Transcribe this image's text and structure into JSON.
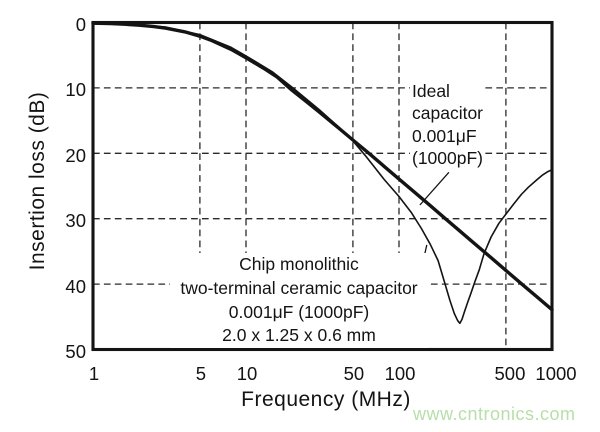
{
  "chart_data": {
    "type": "line",
    "title": "",
    "xlabel": "Frequency (MHz)",
    "ylabel": "Insertion loss (dB)",
    "x_scale": "log",
    "x_range": [
      1,
      1000
    ],
    "y_range": [
      0,
      50
    ],
    "y_inverted": true,
    "grid": "dashed",
    "x_ticks": [
      {
        "value": 1,
        "label": "1",
        "gridline": false
      },
      {
        "value": 5,
        "label": "5",
        "gridline": true
      },
      {
        "value": 10,
        "label": "10",
        "gridline": true
      },
      {
        "value": 50,
        "label": "50",
        "gridline": true
      },
      {
        "value": 100,
        "label": "100",
        "gridline": true
      },
      {
        "value": 500,
        "label": "500",
        "gridline": true
      },
      {
        "value": 1000,
        "label": "1000",
        "gridline": false
      }
    ],
    "y_ticks": [
      {
        "value": 0,
        "label": "0",
        "gridline": false
      },
      {
        "value": 10,
        "label": "10",
        "gridline": true
      },
      {
        "value": 20,
        "label": "20",
        "gridline": true
      },
      {
        "value": 30,
        "label": "30",
        "gridline": true
      },
      {
        "value": 40,
        "label": "40",
        "gridline": true
      },
      {
        "value": 50,
        "label": "50",
        "gridline": false
      }
    ],
    "series": [
      {
        "key": "ideal-capacitor",
        "name": "Ideal capacitor 0.001μF (1000pF)",
        "style": "thick",
        "points": [
          [
            1,
            0.11
          ],
          [
            1.3,
            0.17
          ],
          [
            1.6,
            0.26
          ],
          [
            2,
            0.41
          ],
          [
            2.5,
            0.63
          ],
          [
            3,
            0.87
          ],
          [
            4,
            1.44
          ],
          [
            5,
            2.09
          ],
          [
            6,
            2.78
          ],
          [
            8,
            4.12
          ],
          [
            10,
            5.4
          ],
          [
            13,
            6.97
          ],
          [
            16,
            8.35
          ],
          [
            20,
            10.36
          ],
          [
            25,
            12.15
          ],
          [
            30,
            13.66
          ],
          [
            40,
            16.07
          ],
          [
            50,
            17.97
          ],
          [
            65,
            20.2
          ],
          [
            80,
            22.0
          ],
          [
            100,
            23.94
          ],
          [
            130,
            26.2
          ],
          [
            160,
            28.0
          ],
          [
            200,
            29.95
          ],
          [
            250,
            31.9
          ],
          [
            300,
            33.47
          ],
          [
            400,
            35.97
          ],
          [
            500,
            37.9
          ],
          [
            650,
            40.2
          ],
          [
            800,
            41.99
          ],
          [
            1000,
            43.92
          ]
        ]
      },
      {
        "key": "chip-capacitor",
        "name": "Chip monolithic two-terminal ceramic capacitor 0.001μF (1000pF) 2.0 x 1.25 x 0.6 mm",
        "style": "thin",
        "points": [
          [
            1,
            0.1
          ],
          [
            2,
            0.38
          ],
          [
            3,
            0.7
          ],
          [
            5,
            1.85
          ],
          [
            8,
            3.8
          ],
          [
            10,
            5.1
          ],
          [
            15,
            7.6
          ],
          [
            20,
            9.9
          ],
          [
            30,
            13.3
          ],
          [
            40,
            15.9
          ],
          [
            50,
            18.1
          ],
          [
            60,
            20.3
          ],
          [
            80,
            24.0
          ],
          [
            100,
            26.6
          ],
          [
            120,
            29.0
          ],
          [
            140,
            31.5
          ],
          [
            160,
            33.9
          ],
          [
            180,
            36.4
          ],
          [
            200,
            40.0
          ],
          [
            215,
            42.5
          ],
          [
            230,
            44.5
          ],
          [
            242,
            45.6
          ],
          [
            250,
            46.0
          ],
          [
            258,
            45.4
          ],
          [
            268,
            44.2
          ],
          [
            280,
            42.9
          ],
          [
            295,
            41.4
          ],
          [
            315,
            39.5
          ],
          [
            335,
            37.8
          ],
          [
            360,
            35.3
          ],
          [
            400,
            32.8
          ],
          [
            450,
            30.7
          ],
          [
            500,
            29.3
          ],
          [
            560,
            27.8
          ],
          [
            630,
            26.3
          ],
          [
            700,
            25.2
          ],
          [
            800,
            24.0
          ],
          [
            870,
            23.3
          ],
          [
            940,
            22.8
          ],
          [
            1000,
            22.5
          ]
        ]
      }
    ],
    "callout_lines": [
      {
        "key": "ideal-pointer",
        "from": [
          212,
          22.9
        ],
        "to": [
          137,
          27.9
        ]
      },
      {
        "key": "chip-pointer",
        "from": [
          133,
          40.1
        ],
        "to": [
          152,
          34.0
        ]
      }
    ]
  },
  "annotations": {
    "ideal_label": {
      "lines": [
        "Ideal",
        "capacitor",
        "0.001μF",
        "(1000pF)"
      ]
    },
    "chip_label": {
      "lines": [
        "Chip monolithic",
        "two-terminal ceramic capacitor",
        "0.001μF (1000pF)",
        "2.0 x 1.25 x 0.6 mm"
      ]
    }
  },
  "watermark": {
    "text": "www.cntronics.com",
    "color": "#b7dfa9"
  },
  "colors": {
    "curve": "#141414",
    "grid": "#2a2a2a",
    "frame": "#141414",
    "text": "#141414"
  }
}
